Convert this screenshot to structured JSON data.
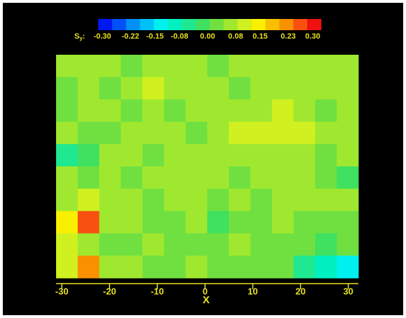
{
  "chart_data": {
    "type": "contour",
    "colorbar_label": "S",
    "colorbar_label_sub": "y",
    "colorbar_label_suffix": ":",
    "x_label": "X",
    "xlim": [
      -31.2,
      32.1
    ],
    "xticks": [
      -30,
      -20,
      -10,
      0,
      10,
      20,
      30
    ],
    "zlim": [
      -0.3,
      0.3
    ],
    "zticks": [
      {
        "value": -0.3,
        "label": "-0.30"
      },
      {
        "value": -0.22,
        "label": "-0.22"
      },
      {
        "value": -0.15,
        "label": "-0.15"
      },
      {
        "value": -0.08,
        "label": "-0.08"
      },
      {
        "value": 0,
        "label": "0.00"
      },
      {
        "value": 0.08,
        "label": "0.08"
      },
      {
        "value": 0.15,
        "label": "0.15"
      },
      {
        "value": 0.23,
        "label": "0.23"
      },
      {
        "value": 0.3,
        "label": "0.30"
      }
    ],
    "colors": [
      "#0018f0",
      "#0050f8",
      "#0090f8",
      "#00c0f8",
      "#00f0f0",
      "#00f0c0",
      "#20e890",
      "#40e060",
      "#70e040",
      "#a0e830",
      "#d0f020",
      "#f8f000",
      "#f8c000",
      "#f89000",
      "#f85010",
      "#f01010"
    ],
    "z": [
      [
        0.05,
        0.04,
        0.06,
        0.03,
        0.05,
        0.07,
        0.04,
        0.03,
        0.06,
        0.05,
        0.04,
        0.05,
        0.06,
        0.04
      ],
      [
        0.03,
        0.06,
        0.02,
        0.05,
        0.08,
        0.04,
        0.06,
        0.05,
        0.03,
        0.07,
        0.05,
        0.04,
        0.06,
        0.05
      ],
      [
        0.0,
        0.04,
        0.06,
        0.03,
        0.05,
        0.02,
        0.04,
        0.06,
        0.05,
        0.04,
        0.08,
        0.06,
        0.03,
        0.05
      ],
      [
        0.05,
        0.03,
        0.02,
        0.06,
        0.04,
        0.05,
        0.03,
        0.07,
        0.09,
        0.1,
        0.08,
        0.11,
        0.07,
        0.04
      ],
      [
        -0.04,
        -0.02,
        0.04,
        0.05,
        0.03,
        0.06,
        0.05,
        0.04,
        0.06,
        0.05,
        0.07,
        0.06,
        0.02,
        0.05
      ],
      [
        0.04,
        0.02,
        0.05,
        0.03,
        0.06,
        0.04,
        0.07,
        0.05,
        0.03,
        0.06,
        0.04,
        0.05,
        0.03,
        -0.02
      ],
      [
        0.07,
        0.09,
        0.05,
        0.06,
        0.03,
        0.05,
        0.04,
        0.02,
        0.05,
        0.03,
        0.06,
        0.04,
        0.05,
        0.04
      ],
      [
        0.12,
        0.24,
        0.06,
        0.04,
        0.02,
        0.03,
        0.05,
        -0.02,
        0.0,
        0.03,
        0.04,
        0.02,
        0.01,
        0.03
      ],
      [
        0.08,
        0.05,
        0.03,
        0.01,
        0.04,
        0.02,
        0.0,
        0.03,
        0.05,
        0.02,
        0.03,
        0.0,
        -0.02,
        0.02
      ],
      [
        0.1,
        0.22,
        0.04,
        0.05,
        0.02,
        0.03,
        0.04,
        0.02,
        0.01,
        0.03,
        0.0,
        -0.04,
        -0.08,
        -0.15
      ]
    ]
  }
}
